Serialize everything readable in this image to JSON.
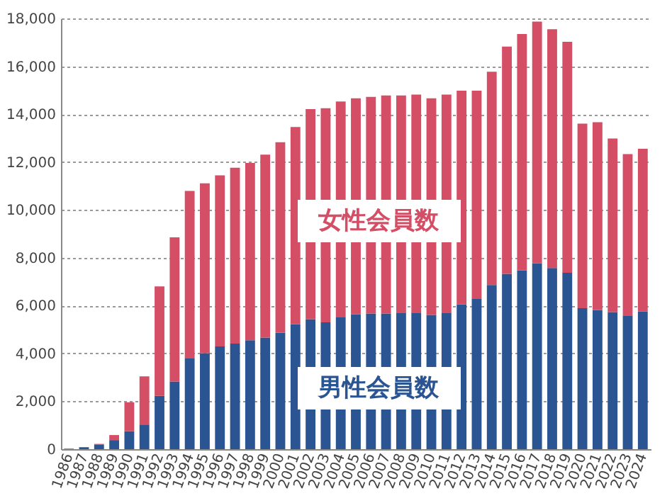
{
  "chart_data": {
    "type": "bar",
    "stacked": true,
    "categories": [
      "1986",
      "1987",
      "1988",
      "1989",
      "1990",
      "1991",
      "1992",
      "1993",
      "1994",
      "1995",
      "1996",
      "1997",
      "1998",
      "1999",
      "2000",
      "2001",
      "2002",
      "2003",
      "2004",
      "2005",
      "2006",
      "2007",
      "2008",
      "2009",
      "2010",
      "2011",
      "2012",
      "2013",
      "2014",
      "2015",
      "2016",
      "2017",
      "2018",
      "2019",
      "2020",
      "2021",
      "2022",
      "2023",
      "2024"
    ],
    "series": [
      {
        "name": "男性会員数",
        "color": "#2a5592",
        "values": [
          20,
          80,
          180,
          380,
          750,
          1030,
          2230,
          2830,
          3810,
          4010,
          4290,
          4410,
          4550,
          4660,
          4860,
          5220,
          5430,
          5300,
          5530,
          5630,
          5670,
          5670,
          5710,
          5710,
          5610,
          5710,
          6050,
          6300,
          6860,
          7330,
          7470,
          7770,
          7570,
          7370,
          5890,
          5810,
          5730,
          5590,
          5750
        ]
      },
      {
        "name": "女性会員数",
        "color": "#d44f66",
        "values": [
          0,
          null,
          40,
          210,
          1210,
          2010,
          4570,
          6020,
          6980,
          7100,
          7150,
          7350,
          7410,
          7650,
          7970,
          8240,
          8780,
          8950,
          9000,
          9030,
          9050,
          9110,
          9070,
          9110,
          9050,
          9110,
          8930,
          8680,
          8910,
          9490,
          9880,
          10100,
          9980,
          9650,
          7710,
          7850,
          7250,
          6740,
          6800
        ]
      }
    ],
    "ylim": [
      0,
      18000
    ],
    "yticks": [
      {
        "value": 0,
        "label": "0"
      },
      {
        "value": 2000,
        "label": "2,000"
      },
      {
        "value": 4000,
        "label": "4,000"
      },
      {
        "value": 6000,
        "label": "6,000"
      },
      {
        "value": 8000,
        "label": "8,000"
      },
      {
        "value": 10000,
        "label": "10,000"
      },
      {
        "value": 12000,
        "label": "12,000"
      },
      {
        "value": 14000,
        "label": "14,000"
      },
      {
        "value": 16000,
        "label": "16,000"
      },
      {
        "value": 18000,
        "label": "18,000"
      }
    ],
    "grid": "y"
  }
}
